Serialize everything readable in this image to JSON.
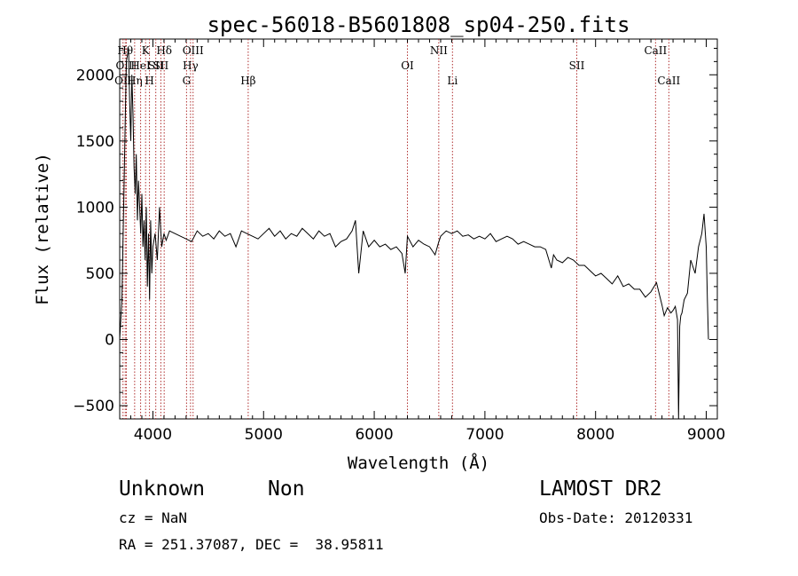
{
  "chart_data": {
    "type": "line",
    "title": "spec-56018-B5601808_sp04-250.fits",
    "xlabel": "Wavelength (Å)",
    "ylabel": "Flux (relative)",
    "xlim": [
      3700,
      9100
    ],
    "ylim": [
      -600,
      2270
    ],
    "xticks": [
      4000,
      5000,
      6000,
      7000,
      8000,
      9000
    ],
    "yticks": [
      -500,
      0,
      500,
      1000,
      1500,
      2000
    ],
    "grid": false,
    "line_color": "#000000",
    "marker_color": "#b03030",
    "series": [
      {
        "x": [
          3700,
          3720,
          3740,
          3760,
          3780,
          3790,
          3800,
          3810,
          3820,
          3830,
          3840,
          3850,
          3860,
          3870,
          3880,
          3890,
          3900,
          3910,
          3920,
          3930,
          3940,
          3950,
          3960,
          3970,
          3980,
          3990,
          4000,
          4020,
          4040,
          4060,
          4080,
          4100,
          4120,
          4150,
          4200,
          4250,
          4300,
          4350,
          4400,
          4450,
          4500,
          4550,
          4600,
          4650,
          4700,
          4750,
          4800,
          4850,
          4900,
          4950,
          5000,
          5050,
          5100,
          5150,
          5200,
          5250,
          5300,
          5350,
          5400,
          5450,
          5500,
          5550,
          5600,
          5650,
          5700,
          5750,
          5800,
          5830,
          5860,
          5900,
          5950,
          6000,
          6050,
          6100,
          6150,
          6200,
          6250,
          6280,
          6300,
          6350,
          6400,
          6450,
          6500,
          6550,
          6580,
          6600,
          6650,
          6700,
          6750,
          6800,
          6850,
          6900,
          6950,
          7000,
          7050,
          7100,
          7150,
          7200,
          7250,
          7300,
          7350,
          7400,
          7450,
          7500,
          7550,
          7600,
          7620,
          7650,
          7700,
          7750,
          7800,
          7850,
          7900,
          7950,
          8000,
          8050,
          8100,
          8150,
          8200,
          8250,
          8300,
          8350,
          8400,
          8450,
          8500,
          8550,
          8600,
          8620,
          8650,
          8680,
          8700,
          8720,
          8740,
          8750,
          8760,
          8770,
          8780,
          8800,
          8830,
          8860,
          8900,
          8930,
          8960,
          8980,
          9000,
          9010,
          9020
        ],
        "y": [
          0,
          300,
          1200,
          2100,
          2200,
          1800,
          1500,
          2000,
          1700,
          1300,
          1100,
          1400,
          900,
          1200,
          1000,
          800,
          1100,
          700,
          900,
          600,
          1000,
          400,
          800,
          300,
          900,
          500,
          700,
          800,
          600,
          1000,
          700,
          800,
          750,
          820,
          800,
          780,
          760,
          740,
          820,
          780,
          800,
          760,
          820,
          780,
          800,
          700,
          820,
          800,
          780,
          760,
          800,
          840,
          780,
          820,
          760,
          800,
          780,
          840,
          800,
          760,
          820,
          780,
          800,
          700,
          740,
          760,
          820,
          900,
          500,
          820,
          700,
          750,
          700,
          720,
          680,
          700,
          650,
          500,
          780,
          700,
          750,
          720,
          700,
          640,
          730,
          780,
          820,
          800,
          820,
          780,
          790,
          760,
          780,
          760,
          800,
          740,
          760,
          780,
          760,
          720,
          740,
          720,
          700,
          700,
          680,
          540,
          640,
          600,
          580,
          620,
          600,
          560,
          560,
          520,
          480,
          500,
          460,
          420,
          480,
          400,
          420,
          380,
          380,
          320,
          360,
          430,
          260,
          180,
          240,
          200,
          220,
          250,
          150,
          -600,
          100,
          180,
          200,
          300,
          350,
          600,
          500,
          700,
          800,
          950,
          700,
          300,
          0
        ]
      }
    ],
    "lines": [
      {
        "x": 3730,
        "label": "OII",
        "row": 3
      },
      {
        "x": 3750,
        "label": "Hθ",
        "row": 1
      },
      {
        "x": 3760,
        "label": "OIII",
        "row": 2
      },
      {
        "x": 3835,
        "label": "Hη",
        "row": 3
      },
      {
        "x": 3889,
        "label": "HeI",
        "row": 2
      },
      {
        "x": 3934,
        "label": "K",
        "row": 1
      },
      {
        "x": 3969,
        "label": "H",
        "row": 3
      },
      {
        "x": 4026,
        "label": "SII",
        "row": 2
      },
      {
        "x": 4072,
        "label": "SII",
        "row": 2
      },
      {
        "x": 4102,
        "label": "Hδ",
        "row": 1
      },
      {
        "x": 4304,
        "label": "G",
        "row": 3
      },
      {
        "x": 4340,
        "label": "Hγ",
        "row": 2
      },
      {
        "x": 4363,
        "label": "OIII",
        "row": 1
      },
      {
        "x": 4861,
        "label": "Hβ",
        "row": 3
      },
      {
        "x": 6300,
        "label": "OI",
        "row": 2
      },
      {
        "x": 6583,
        "label": "NII",
        "row": 1
      },
      {
        "x": 6707,
        "label": "Li",
        "row": 3
      },
      {
        "x": 7830,
        "label": "SII",
        "row": 2
      },
      {
        "x": 8542,
        "label": "CaII",
        "row": 1
      },
      {
        "x": 8662,
        "label": "CaII",
        "row": 3
      }
    ]
  },
  "info": {
    "object_type": "Unknown",
    "object_class": "Non",
    "survey": "LAMOST DR2",
    "redshift_text": "cz = NaN",
    "obs_date_text": "Obs-Date: 20120331",
    "coords_text": "RA = 251.37087, DEC =  38.95811"
  }
}
